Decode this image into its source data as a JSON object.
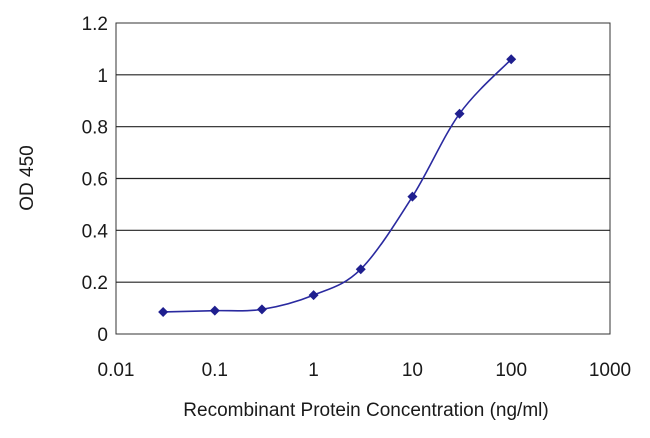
{
  "chart_data": {
    "type": "line",
    "title": "",
    "xlabel": "Recombinant Protein Concentration (ng/ml)",
    "ylabel": "OD 450",
    "x_scale": "log",
    "xlim": [
      0.01,
      1000
    ],
    "ylim": [
      0,
      1.2
    ],
    "x_tick_labels": [
      "0.01",
      "0.1",
      "1",
      "10",
      "100",
      "1000"
    ],
    "y_tick_labels": [
      "0",
      "0.2",
      "0.4",
      "0.6",
      "0.8",
      "1",
      "1.2"
    ],
    "grid": "horizontal",
    "legend": "none",
    "series": [
      {
        "color": "#1f1f8f",
        "marker": "diamond",
        "x": [
          0.03,
          0.1,
          0.3,
          1,
          3,
          10,
          30,
          100
        ],
        "y": [
          0.085,
          0.09,
          0.095,
          0.15,
          0.25,
          0.53,
          0.85,
          1.06
        ]
      }
    ],
    "plot_background": "#ffffff",
    "gridline_color": "#222222"
  }
}
